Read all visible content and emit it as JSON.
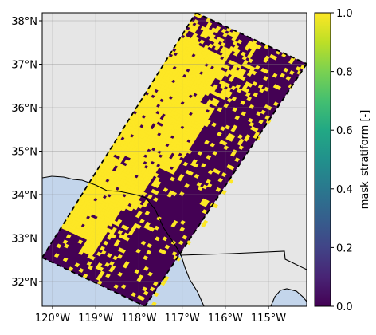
{
  "map": {
    "x_ticks": [
      "120°W",
      "119°W",
      "118°W",
      "117°W",
      "116°W",
      "115°W"
    ],
    "y_ticks": [
      "38°N",
      "37°N",
      "36°N",
      "35°N",
      "34°N",
      "33°N",
      "32°N"
    ],
    "extent": {
      "lon_min": -120.5,
      "lon_max": -114.5,
      "lat_min": 31.4,
      "lat_max": 38.3
    },
    "ocean_color": "#c3d5eb",
    "land_color": "#e6e6e6",
    "masked_color": "#440154",
    "stratiform_color": "#fde725"
  },
  "colorbar": {
    "label": "mask_stratiform [-]",
    "ticks": [
      "0.0",
      "0.2",
      "0.4",
      "0.6",
      "0.8",
      "1.0"
    ],
    "range": [
      0.0,
      1.0
    ],
    "colormap": "viridis"
  }
}
